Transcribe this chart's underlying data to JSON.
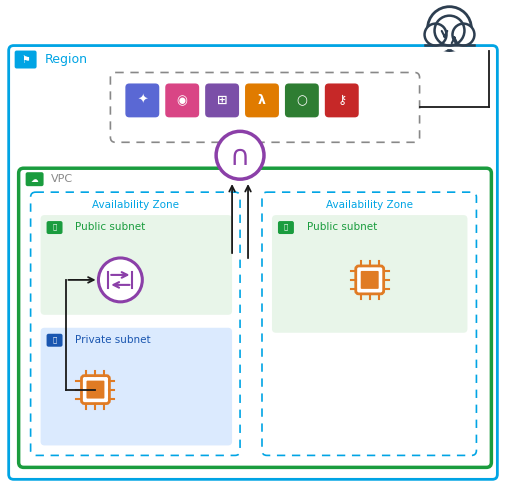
{
  "fig_width": 5.21,
  "fig_height": 4.93,
  "dpi": 100,
  "bg_color": "#ffffff",
  "region_border": "#00a4e4",
  "region_label": "Region",
  "region_label_color": "#00a4e4",
  "vpc_border": "#1a9c3e",
  "vpc_label": "VPC",
  "vpc_label_color": "#888888",
  "vpc_icon_color": "#1a9c3e",
  "services_border": "#888888",
  "az_border": "#00a4e4",
  "az_label": "Availability Zone",
  "az_label_color": "#00a4e4",
  "pub_subnet_bg": "#e8f5e9",
  "pub_subnet_label": "Public subnet",
  "pub_subnet_label_color": "#1a9c3e",
  "pub_subnet_icon_color": "#1a9c3e",
  "priv_subnet_bg": "#dbeafe",
  "priv_subnet_label": "Private subnet",
  "priv_subnet_label_color": "#1a56b0",
  "priv_subnet_icon_color": "#1a56b0",
  "igw_border": "#8b3fa8",
  "igw_fill": "#ffffff",
  "nat_border": "#8b3fa8",
  "nat_fill": "#ffffff",
  "ec2_color": "#e07b24",
  "arrow_color": "#1a1a1a",
  "cloud_color": "#2d3e50",
  "service_colors": [
    "#5a68d4",
    "#d94585",
    "#7b4fa8",
    "#e07b00",
    "#2e7d32",
    "#c62828"
  ],
  "flag_bg": "#00a4e4"
}
